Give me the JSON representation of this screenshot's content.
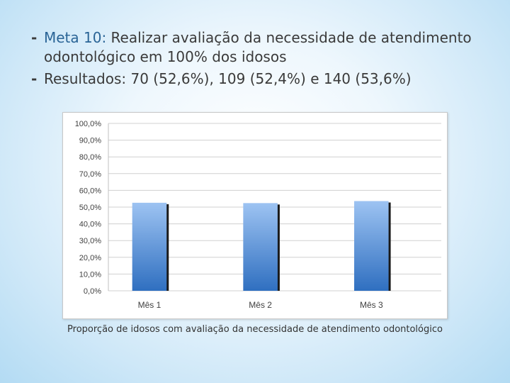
{
  "bullets": [
    {
      "lead": "Meta 10:",
      "text": " Realizar avaliação da necessidade de atendimento odontológico em 100% dos idosos"
    },
    {
      "lead": "",
      "text": "Resultados: 70 (52,6%), 109 (52,4%) e 140 (53,6%)"
    }
  ],
  "bullet_marker": "-",
  "chart_data": {
    "type": "bar",
    "categories": [
      "Mês 1",
      "Mês 2",
      "Mês 3"
    ],
    "values": [
      52.6,
      52.4,
      53.6
    ],
    "ylim": [
      0,
      100
    ],
    "yticks": [
      "0,0%",
      "10,0%",
      "20,0%",
      "30,0%",
      "40,0%",
      "50,0%",
      "60,0%",
      "70,0%",
      "80,0%",
      "90,0%",
      "100,0%"
    ],
    "grid": true,
    "title": "",
    "xlabel": "",
    "ylabel": "",
    "bar_color_top": "#9dc3f2",
    "bar_color_bottom": "#2f6fc0"
  },
  "caption": "Proporção de idosos com avaliação da necessidade de atendimento odontológico"
}
